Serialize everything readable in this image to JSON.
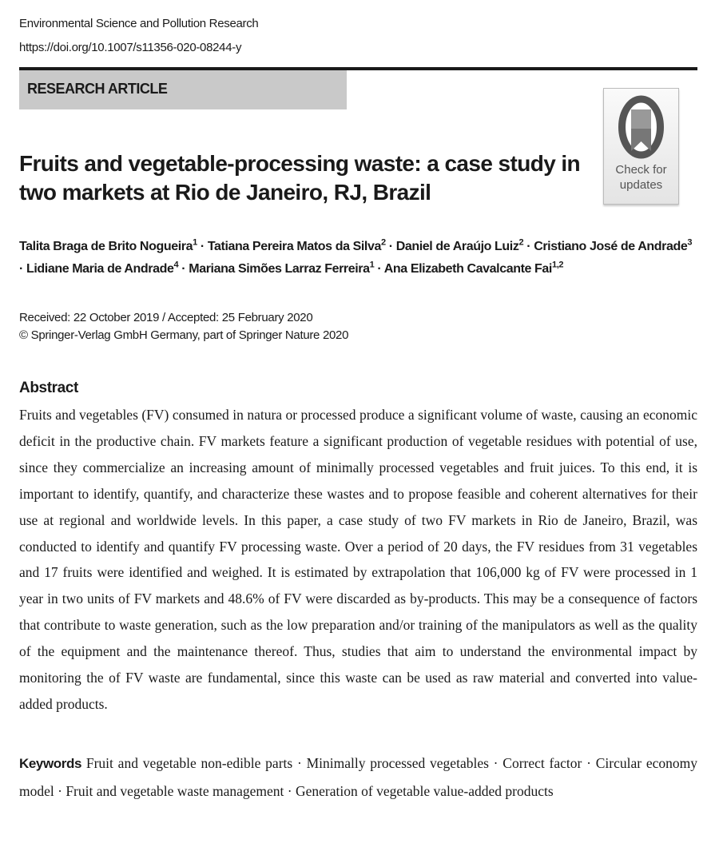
{
  "header": {
    "journal": "Environmental Science and Pollution Research",
    "doi": "https://doi.org/10.1007/s11356-020-08244-y",
    "article_type": "RESEARCH ARTICLE"
  },
  "badge": {
    "line1": "Check for",
    "line2": "updates",
    "icon": "crossmark-icon"
  },
  "title": {
    "line1": "Fruits and vegetable-processing waste: a case study in two markets",
    "line2": "at Rio de Janeiro, RJ, Brazil"
  },
  "authors": [
    {
      "name": "Talita Braga de Brito Nogueira",
      "aff": "1"
    },
    {
      "name": "Tatiana Pereira Matos da Silva",
      "aff": "2"
    },
    {
      "name": "Daniel de Araújo Luiz",
      "aff": "2"
    },
    {
      "name": "Cristiano José de Andrade",
      "aff": "3"
    },
    {
      "name": "Lidiane Maria de Andrade",
      "aff": "4"
    },
    {
      "name": "Mariana Simões Larraz Ferreira",
      "aff": "1"
    },
    {
      "name": "Ana Elizabeth Cavalcante Fai",
      "aff": "1,2"
    }
  ],
  "dates": {
    "received": "Received: 22 October 2019 / Accepted: 25 February 2020",
    "copyright": "© Springer-Verlag GmbH Germany, part of Springer Nature 2020"
  },
  "abstract": {
    "heading": "Abstract",
    "lines": [
      "Fruits and vegetables (FV) consumed in natura or processed produce a significant volume of waste, causing an economic deficit",
      "in the productive chain. FV markets feature a significant production of vegetable residues with potential of use, since they",
      "commercialize an increasing amount of minimally processed vegetables and fruit juices. To this end, it is important to identify,",
      "quantify, and characterize these wastes and to propose feasible and coherent alternatives for their use at regional and worldwide",
      "levels. In this paper, a case study of two FV markets in Rio de Janeiro, Brazil, was conducted to identify and quantify FV",
      "processing waste. Over a period of 20 days, the FV residues from 31 vegetables and 17 fruits were identified and weighed. It is",
      "estimated by extrapolation that 106,000 kg of FV were processed in 1 year in two units of FV markets and 48.6% of FV were",
      "discarded as by-products. This may be a consequence of factors that contribute to waste generation, such as the low preparation",
      "and/or training of the manipulators as well as the quality of the equipment and the maintenance thereof. Thus, studies that aim to",
      "understand the environmental impact by monitoring the of FV waste are fundamental, since this waste can be used as raw",
      "material and converted into value-added products."
    ]
  },
  "keywords": {
    "label": "Keywords",
    "lines": [
      "Fruit and vegetable non-edible parts · Minimally processed vegetables · Correct factor · Circular economy model · Fruit",
      "and vegetable waste management · Generation of vegetable value-added products"
    ]
  }
}
